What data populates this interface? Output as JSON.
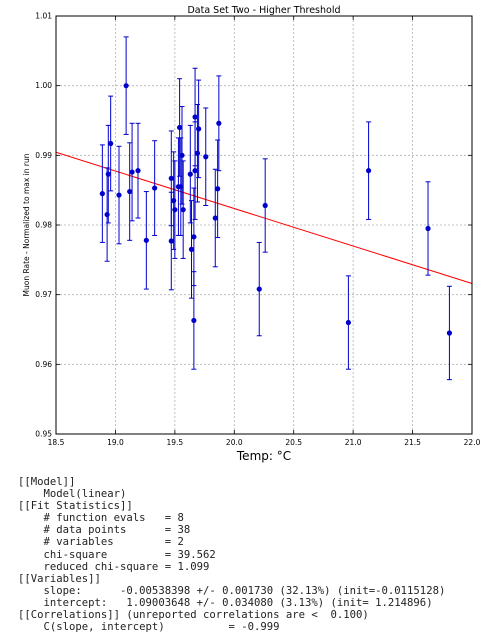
{
  "chart_data": {
    "type": "scatter",
    "title": "Data Set Two - Higher Threshold",
    "xlabel": "Temp: °C",
    "ylabel": "Muon Rate - Normalized to max in run",
    "xlim": [
      18.5,
      22.0
    ],
    "ylim": [
      0.95,
      1.01
    ],
    "xticks": [
      "18.5",
      "19.0",
      "19.5",
      "20.0",
      "20.5",
      "21.0",
      "21.5",
      "22.0"
    ],
    "yticks": [
      "0.95",
      "0.96",
      "0.97",
      "0.98",
      "0.99",
      "1.00",
      "1.01"
    ],
    "grid": true,
    "series": [
      {
        "color": "#0000cc",
        "points": [
          {
            "x": 18.89,
            "y": 0.9845,
            "err": 0.007
          },
          {
            "x": 18.93,
            "y": 0.9815,
            "err": 0.0067
          },
          {
            "x": 18.94,
            "y": 0.9873,
            "err": 0.007
          },
          {
            "x": 18.96,
            "y": 0.9917,
            "err": 0.0068
          },
          {
            "x": 19.03,
            "y": 0.9843,
            "err": 0.007
          },
          {
            "x": 19.09,
            "y": 1.0,
            "err": 0.007
          },
          {
            "x": 19.12,
            "y": 0.9848,
            "err": 0.007
          },
          {
            "x": 19.14,
            "y": 0.9876,
            "err": 0.007
          },
          {
            "x": 19.19,
            "y": 0.9878,
            "err": 0.0068
          },
          {
            "x": 19.26,
            "y": 0.9778,
            "err": 0.007
          },
          {
            "x": 19.33,
            "y": 0.9853,
            "err": 0.0068
          },
          {
            "x": 19.47,
            "y": 0.9867,
            "err": 0.0068
          },
          {
            "x": 19.47,
            "y": 0.9777,
            "err": 0.007
          },
          {
            "x": 19.49,
            "y": 0.9835,
            "err": 0.007
          },
          {
            "x": 19.5,
            "y": 0.9822,
            "err": 0.007
          },
          {
            "x": 19.53,
            "y": 0.9855,
            "err": 0.007
          },
          {
            "x": 19.54,
            "y": 0.994,
            "err": 0.007
          },
          {
            "x": 19.55,
            "y": 0.9855,
            "err": 0.007
          },
          {
            "x": 19.56,
            "y": 0.99,
            "err": 0.007
          },
          {
            "x": 19.57,
            "y": 0.9822,
            "err": 0.007
          },
          {
            "x": 19.63,
            "y": 0.9873,
            "err": 0.007
          },
          {
            "x": 19.64,
            "y": 0.9765,
            "err": 0.007
          },
          {
            "x": 19.66,
            "y": 0.9783,
            "err": 0.007
          },
          {
            "x": 19.66,
            "y": 0.9663,
            "err": 0.007
          },
          {
            "x": 19.67,
            "y": 0.9878,
            "err": 0.007
          },
          {
            "x": 19.67,
            "y": 0.9955,
            "err": 0.007
          },
          {
            "x": 19.69,
            "y": 0.9903,
            "err": 0.007
          },
          {
            "x": 19.7,
            "y": 0.9938,
            "err": 0.007
          },
          {
            "x": 19.76,
            "y": 0.9898,
            "err": 0.007
          },
          {
            "x": 19.84,
            "y": 0.981,
            "err": 0.007
          },
          {
            "x": 19.86,
            "y": 0.9852,
            "err": 0.007
          },
          {
            "x": 19.87,
            "y": 0.9946,
            "err": 0.0068
          },
          {
            "x": 20.21,
            "y": 0.9708,
            "err": 0.0067
          },
          {
            "x": 20.26,
            "y": 0.9828,
            "err": 0.0067
          },
          {
            "x": 20.96,
            "y": 0.966,
            "err": 0.0067
          },
          {
            "x": 21.13,
            "y": 0.9878,
            "err": 0.007
          },
          {
            "x": 21.63,
            "y": 0.9795,
            "err": 0.0067
          },
          {
            "x": 21.81,
            "y": 0.9645,
            "err": 0.0067
          }
        ]
      },
      {
        "type": "line",
        "color": "#ff0000",
        "x": [
          18.5,
          22.0
        ],
        "y": [
          0.99044,
          0.9716
        ]
      }
    ]
  },
  "fit_report": [
    "[[Model]]",
    "    Model(linear)",
    "[[Fit Statistics]]",
    "    # function evals   = 8",
    "    # data points      = 38",
    "    # variables        = 2",
    "    chi-square         = 39.562",
    "    reduced chi-square = 1.099",
    "[[Variables]]",
    "    slope:      -0.00538398 +/- 0.001730 (32.13%) (init=-0.0115128)",
    "    intercept:   1.09003648 +/- 0.034080 (3.13%) (init= 1.214896)",
    "[[Correlations]] (unreported correlations are <  0.100)",
    "    C(slope, intercept)          = -0.999"
  ]
}
